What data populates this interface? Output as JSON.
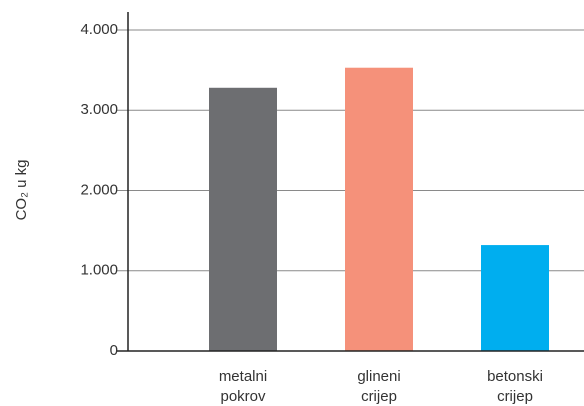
{
  "chart_data": {
    "type": "bar",
    "title": "",
    "xlabel": "",
    "ylabel": "CO₂ u kg",
    "categories": [
      [
        "metalni",
        "pokrov"
      ],
      [
        "glineni",
        "crijep"
      ],
      [
        "betonski",
        "crijep"
      ]
    ],
    "values": [
      3280,
      3530,
      1320
    ],
    "colors": [
      "#6d6e71",
      "#f5917a",
      "#00aeef"
    ],
    "ylim": [
      0,
      4000
    ],
    "yticks": [
      0,
      1000,
      2000,
      3000,
      4000
    ],
    "ytick_labels": [
      "0",
      "1.000",
      "2.000",
      "3.000",
      "4.000"
    ],
    "grid": true,
    "legend": "none"
  }
}
